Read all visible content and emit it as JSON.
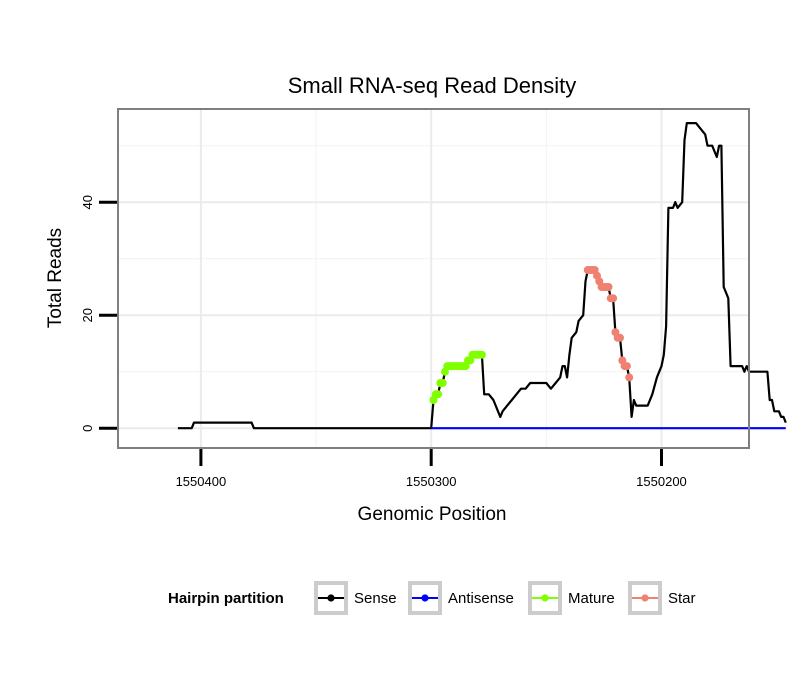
{
  "chart_data": {
    "type": "line",
    "title": "Small RNA-seq Read Density",
    "xlabel": "Genomic Position",
    "ylabel": "Total Reads",
    "x_reversed": true,
    "xlim": [
      1550436,
      1550162
    ],
    "ylim": [
      -3.5,
      56.5
    ],
    "x_ticks": [
      1550400,
      1550300,
      1550200
    ],
    "x_tick_labels": [
      "1550400",
      "1550300",
      "1550200"
    ],
    "y_ticks": [
      0,
      20,
      40
    ],
    "y_tick_labels": [
      "0",
      "20",
      "40"
    ],
    "grid": true,
    "legend": {
      "title": "Hairpin partition",
      "position": "bottom",
      "entries": [
        {
          "label": "Sense",
          "color": "#000000"
        },
        {
          "label": "Antisense",
          "color": "#0000ff"
        },
        {
          "label": "Mature",
          "color": "#7fff00"
        },
        {
          "label": "Star",
          "color": "#f08070"
        }
      ]
    },
    "series": [
      {
        "name": "Sense",
        "color": "#000000",
        "line": true,
        "points": [
          [
            1550410,
            0
          ],
          [
            1550404,
            0
          ],
          [
            1550403,
            1
          ],
          [
            1550396,
            1
          ],
          [
            1550383,
            1
          ],
          [
            1550378,
            1
          ],
          [
            1550377,
            0
          ],
          [
            1550350,
            0
          ],
          [
            1550320,
            0
          ],
          [
            1550300,
            0
          ],
          [
            1550299,
            5
          ],
          [
            1550298,
            6
          ],
          [
            1550297,
            6
          ],
          [
            1550296,
            8
          ],
          [
            1550295,
            8
          ],
          [
            1550294,
            10
          ],
          [
            1550293,
            11
          ],
          [
            1550285,
            11
          ],
          [
            1550283,
            12
          ],
          [
            1550281,
            13
          ],
          [
            1550278,
            13
          ],
          [
            1550277,
            6
          ],
          [
            1550275,
            6
          ],
          [
            1550273,
            5
          ],
          [
            1550271,
            3
          ],
          [
            1550270,
            2
          ],
          [
            1550269,
            3
          ],
          [
            1550267,
            4
          ],
          [
            1550265,
            5
          ],
          [
            1550263,
            6
          ],
          [
            1550261,
            7
          ],
          [
            1550259,
            7
          ],
          [
            1550257,
            8
          ],
          [
            1550250,
            8
          ],
          [
            1550248,
            7
          ],
          [
            1550246,
            8
          ],
          [
            1550244,
            9
          ],
          [
            1550243,
            11
          ],
          [
            1550242,
            11
          ],
          [
            1550241,
            9
          ],
          [
            1550240,
            13
          ],
          [
            1550239,
            16
          ],
          [
            1550237,
            17
          ],
          [
            1550236,
            19
          ],
          [
            1550234,
            20
          ],
          [
            1550233,
            26
          ],
          [
            1550232,
            28
          ],
          [
            1550229,
            28
          ],
          [
            1550228,
            27
          ],
          [
            1550227,
            26
          ],
          [
            1550226,
            25
          ],
          [
            1550223,
            25
          ],
          [
            1550222,
            23
          ],
          [
            1550221,
            23
          ],
          [
            1550220,
            17
          ],
          [
            1550219,
            16
          ],
          [
            1550218,
            16
          ],
          [
            1550217,
            12
          ],
          [
            1550216,
            11
          ],
          [
            1550215,
            11
          ],
          [
            1550214,
            9
          ],
          [
            1550213,
            2
          ],
          [
            1550212,
            5
          ],
          [
            1550211,
            4
          ],
          [
            1550206,
            4
          ],
          [
            1550204,
            6
          ],
          [
            1550202,
            9
          ],
          [
            1550200,
            11
          ],
          [
            1550199,
            13
          ],
          [
            1550198,
            18
          ],
          [
            1550197,
            39
          ],
          [
            1550195,
            39
          ],
          [
            1550194,
            40
          ],
          [
            1550193,
            39
          ],
          [
            1550191,
            40
          ],
          [
            1550190,
            51
          ],
          [
            1550189,
            54
          ],
          [
            1550185,
            54
          ],
          [
            1550183,
            53
          ],
          [
            1550181,
            52
          ],
          [
            1550180,
            50
          ],
          [
            1550178,
            50
          ],
          [
            1550177,
            49
          ],
          [
            1550176,
            48
          ],
          [
            1550175,
            50
          ],
          [
            1550174,
            50
          ],
          [
            1550173,
            25
          ],
          [
            1550172,
            24
          ],
          [
            1550171,
            23
          ],
          [
            1550170,
            11
          ],
          [
            1550165,
            11
          ],
          [
            1550164,
            10
          ],
          [
            1550163,
            11
          ],
          [
            1550162,
            10
          ],
          [
            1550154,
            10
          ],
          [
            1550153,
            5
          ],
          [
            1550152,
            5
          ],
          [
            1550151,
            3
          ],
          [
            1550149,
            3
          ],
          [
            1550148,
            2
          ],
          [
            1550147,
            2
          ],
          [
            1550146,
            1
          ]
        ]
      },
      {
        "name": "Antisense",
        "color": "#0000ff",
        "line": true,
        "points": [
          [
            1550300,
            0
          ],
          [
            1550146,
            0
          ]
        ]
      },
      {
        "name": "Mature",
        "color": "#7fff00",
        "line": false,
        "points": [
          [
            1550299,
            5
          ],
          [
            1550298,
            6
          ],
          [
            1550297,
            6
          ],
          [
            1550296,
            8
          ],
          [
            1550295,
            8
          ],
          [
            1550294,
            10
          ],
          [
            1550293,
            11
          ],
          [
            1550292,
            11
          ],
          [
            1550291,
            11
          ],
          [
            1550290,
            11
          ],
          [
            1550289,
            11
          ],
          [
            1550288,
            11
          ],
          [
            1550287,
            11
          ],
          [
            1550286,
            11
          ],
          [
            1550285,
            11
          ],
          [
            1550284,
            12
          ],
          [
            1550283,
            12
          ],
          [
            1550282,
            13
          ],
          [
            1550281,
            13
          ],
          [
            1550280,
            13
          ],
          [
            1550279,
            13
          ],
          [
            1550278,
            13
          ]
        ]
      },
      {
        "name": "Star",
        "color": "#f08070",
        "line": false,
        "points": [
          [
            1550232,
            28
          ],
          [
            1550231,
            28
          ],
          [
            1550230,
            28
          ],
          [
            1550229,
            28
          ],
          [
            1550228,
            27
          ],
          [
            1550227,
            26
          ],
          [
            1550226,
            25
          ],
          [
            1550225,
            25
          ],
          [
            1550224,
            25
          ],
          [
            1550223,
            25
          ],
          [
            1550222,
            23
          ],
          [
            1550221,
            23
          ],
          [
            1550220,
            17
          ],
          [
            1550219,
            16
          ],
          [
            1550218,
            16
          ],
          [
            1550217,
            12
          ],
          [
            1550216,
            11
          ],
          [
            1550215,
            11
          ],
          [
            1550214,
            9
          ]
        ]
      }
    ]
  }
}
